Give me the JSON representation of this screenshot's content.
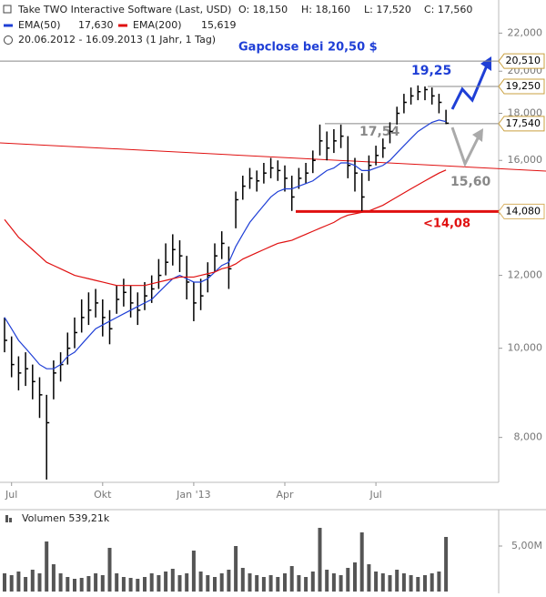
{
  "chart_data": {
    "type": "ohlc",
    "title": "Take TWO Interactive Software (Last, USD)",
    "ohlc_header": [
      "O: 18,150",
      "H: 18,160",
      "L: 17,520",
      "C: 17,560"
    ],
    "period": "20.06.2012 - 16.09.2013 (1 Jahr, 1 Tag)",
    "categories": [
      null,
      "Jul",
      null,
      null,
      null,
      null,
      null,
      null,
      null,
      null,
      null,
      null,
      null,
      null,
      "Okt",
      null,
      null,
      null,
      null,
      null,
      null,
      null,
      null,
      null,
      null,
      null,
      null,
      "Jan '13",
      null,
      null,
      null,
      null,
      null,
      null,
      null,
      null,
      null,
      null,
      null,
      null,
      "Apr",
      null,
      null,
      null,
      null,
      null,
      null,
      null,
      null,
      null,
      null,
      null,
      null,
      "Jul",
      null,
      null,
      null,
      null,
      null,
      null,
      null,
      null,
      null,
      null
    ],
    "close": [
      10.2,
      9.6,
      9.4,
      9.5,
      9.2,
      8.9,
      8.3,
      9.4,
      9.6,
      10.0,
      10.4,
      10.8,
      11.0,
      11.2,
      10.8,
      10.5,
      11.3,
      11.5,
      11.2,
      11.0,
      11.4,
      11.6,
      12.0,
      12.4,
      12.8,
      12.6,
      11.8,
      11.2,
      11.4,
      12.0,
      12.6,
      13.0,
      12.2,
      14.5,
      15.0,
      15.3,
      15.2,
      15.5,
      15.7,
      15.6,
      15.3,
      14.6,
      15.3,
      15.5,
      16.0,
      16.8,
      16.5,
      16.8,
      17.0,
      15.8,
      15.5,
      14.6,
      15.8,
      16.2,
      16.5,
      17.2,
      18.0,
      18.5,
      18.8,
      19.0,
      19.1,
      18.8,
      18.5,
      17.56
    ],
    "high": [
      10.8,
      10.3,
      9.8,
      9.9,
      9.6,
      9.3,
      8.9,
      9.7,
      9.9,
      10.4,
      10.8,
      11.3,
      11.5,
      11.6,
      11.3,
      11.0,
      11.7,
      11.9,
      11.7,
      11.5,
      11.8,
      12.0,
      12.5,
      13.0,
      13.3,
      13.1,
      12.6,
      11.8,
      11.9,
      12.4,
      13.0,
      13.4,
      12.9,
      14.8,
      15.4,
      15.7,
      15.6,
      15.9,
      16.1,
      16.0,
      15.8,
      15.4,
      15.7,
      15.9,
      16.4,
      17.5,
      17.2,
      17.3,
      17.5,
      17.0,
      16.1,
      15.5,
      16.2,
      16.6,
      16.9,
      17.6,
      18.3,
      18.9,
      19.2,
      19.3,
      19.25,
      19.2,
      18.9,
      18.16
    ],
    "low": [
      9.9,
      9.3,
      9.0,
      9.1,
      8.8,
      8.4,
      7.2,
      8.8,
      9.2,
      9.6,
      10.0,
      10.4,
      10.6,
      10.8,
      10.3,
      10.1,
      10.9,
      11.1,
      10.8,
      10.6,
      11.0,
      11.2,
      11.6,
      12.0,
      12.3,
      12.1,
      11.3,
      10.7,
      11.0,
      11.5,
      12.1,
      12.5,
      11.6,
      13.5,
      14.5,
      14.9,
      14.8,
      15.1,
      15.3,
      15.2,
      14.8,
      14.1,
      14.9,
      15.1,
      15.5,
      16.2,
      16.0,
      16.3,
      16.5,
      15.3,
      14.8,
      14.1,
      15.2,
      15.8,
      16.1,
      16.7,
      17.5,
      18.0,
      18.4,
      18.6,
      18.6,
      18.4,
      18.0,
      17.52
    ],
    "color": "#000000",
    "series": [
      {
        "name": "EMA(50)",
        "legend_value": "17,630",
        "color": "#1f3fd6",
        "values": [
          10.8,
          10.5,
          10.2,
          10.0,
          9.8,
          9.6,
          9.5,
          9.5,
          9.6,
          9.8,
          9.9,
          10.1,
          10.3,
          10.5,
          10.6,
          10.7,
          10.8,
          10.9,
          11.0,
          11.1,
          11.2,
          11.3,
          11.5,
          11.7,
          11.9,
          12.0,
          11.9,
          11.8,
          11.8,
          11.9,
          12.1,
          12.3,
          12.4,
          12.9,
          13.3,
          13.7,
          14.0,
          14.3,
          14.6,
          14.8,
          14.9,
          14.9,
          15.0,
          15.1,
          15.2,
          15.4,
          15.6,
          15.7,
          15.9,
          15.9,
          15.8,
          15.6,
          15.6,
          15.7,
          15.8,
          16.0,
          16.3,
          16.6,
          16.9,
          17.2,
          17.4,
          17.6,
          17.7,
          17.63
        ]
      },
      {
        "name": "EMA(200)",
        "legend_value": "15,619",
        "color": "#e01010",
        "values": [
          13.8,
          13.5,
          13.2,
          13.0,
          12.8,
          12.6,
          12.4,
          12.3,
          12.2,
          12.1,
          12.0,
          11.95,
          11.9,
          11.85,
          11.8,
          11.75,
          11.7,
          11.7,
          11.7,
          11.7,
          11.7,
          11.75,
          11.8,
          11.85,
          11.9,
          11.95,
          11.95,
          11.95,
          12.0,
          12.05,
          12.1,
          12.2,
          12.25,
          12.35,
          12.5,
          12.6,
          12.7,
          12.8,
          12.9,
          13.0,
          13.05,
          13.1,
          13.2,
          13.3,
          13.4,
          13.5,
          13.6,
          13.7,
          13.85,
          13.95,
          14.0,
          14.05,
          14.1,
          14.2,
          14.3,
          14.45,
          14.6,
          14.75,
          14.9,
          15.05,
          15.2,
          15.35,
          15.5,
          15.62
        ]
      }
    ],
    "log_scale": true,
    "ylim": [
      7.15,
      23.9
    ],
    "yticks": [
      {
        "value": 8,
        "label": "8,000"
      },
      {
        "value": 10,
        "label": "10,000"
      },
      {
        "value": 12,
        "label": "12,000"
      },
      {
        "value": 14,
        "label": "14,000"
      },
      {
        "value": 16,
        "label": "16,000"
      },
      {
        "value": 18,
        "label": "18,000"
      },
      {
        "value": 20,
        "label": "20,000"
      },
      {
        "value": 22,
        "label": "22,000"
      }
    ],
    "levels": [
      {
        "value": 20.51,
        "label": "20,510"
      },
      {
        "value": 19.25,
        "label": "19,250"
      },
      {
        "value": 17.54,
        "label": "17,540"
      },
      {
        "value": 14.08,
        "label": "14,080"
      }
    ],
    "annotations": [
      "Gapclose bei 20,50 $",
      "19,25",
      "17,54",
      "15,60",
      "<14,08"
    ],
    "volume": {
      "label": "Volumen 539,21k",
      "color": "#555555",
      "values": [
        2.0,
        1.8,
        2.2,
        1.6,
        2.4,
        2.0,
        5.5,
        3.0,
        2.0,
        1.6,
        1.4,
        1.5,
        1.7,
        2.0,
        1.8,
        4.8,
        2.0,
        1.6,
        1.5,
        1.4,
        1.6,
        2.0,
        1.8,
        2.2,
        2.5,
        1.8,
        2.0,
        4.5,
        2.2,
        1.8,
        1.6,
        2.0,
        2.4,
        5.0,
        2.6,
        2.0,
        1.8,
        1.6,
        1.8,
        1.6,
        2.0,
        2.8,
        1.8,
        1.6,
        2.2,
        7.0,
        2.4,
        2.0,
        1.8,
        2.6,
        3.2,
        6.5,
        3.0,
        2.2,
        2.0,
        1.8,
        2.4,
        2.0,
        1.8,
        1.6,
        1.8,
        2.0,
        2.2,
        6.0
      ],
      "ylim": [
        0,
        8.5
      ],
      "yticks": [
        {
          "value": 5,
          "label": "5,00M"
        }
      ]
    }
  }
}
